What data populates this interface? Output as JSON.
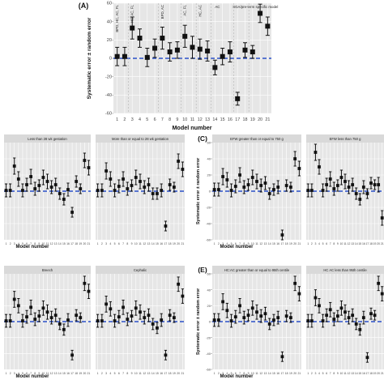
{
  "chart_data": [
    {
      "type": "scatter",
      "panel_label": "(A)",
      "ylabel": "Systematic error ± random error",
      "xlabel": "Model number",
      "ylim": [
        -60,
        60
      ],
      "yticks": [
        -60,
        -40,
        -20,
        0,
        20,
        40,
        60
      ],
      "x": [
        1,
        2,
        3,
        4,
        5,
        6,
        7,
        8,
        9,
        10,
        11,
        12,
        13,
        14,
        15,
        16,
        17,
        18,
        19,
        20,
        21
      ],
      "x_labels": [
        "1",
        "2",
        "3",
        "4",
        "5",
        "6",
        "7",
        "8",
        "9",
        "10",
        "11",
        "12",
        "13",
        "14",
        "15",
        "16",
        "17",
        "18",
        "19",
        "20",
        "21"
      ],
      "y": [
        2,
        2,
        33,
        22,
        1,
        11,
        22,
        7,
        9,
        24,
        12,
        10,
        8,
        -10,
        2,
        7,
        -44,
        9,
        7,
        49,
        35
      ],
      "error": [
        10,
        10,
        12,
        10,
        10,
        10,
        12,
        10,
        9,
        12,
        12,
        11,
        11,
        8,
        9,
        11,
        7,
        8,
        7,
        10,
        10
      ],
      "ref_line": 0,
      "group_labels": [
        "BPD, HC, AC, FL",
        "HC, AC, FL",
        "BPD, AC",
        "AC, FL",
        "HC, AC",
        "AC",
        "SGA/pre-term specific model"
      ],
      "grid": true
    },
    {
      "type": "scatter",
      "panel_label": "",
      "ylabel": "",
      "xlabel": "Model number",
      "facets": [
        "Less than 28 wk gestation",
        "More than or equal to 28 wk gestation"
      ],
      "x_labels": [
        "1",
        "2",
        "3",
        "4",
        "5",
        "6",
        "7",
        "8",
        "9",
        "10",
        "11",
        "12",
        "13",
        "14",
        "15",
        "16",
        "17",
        "18",
        "19",
        "20",
        "21"
      ],
      "ylim": [
        -60,
        60
      ],
      "series": [
        {
          "values": [
            1,
            1,
            31,
            15,
            1,
            8,
            18,
            3,
            7,
            17,
            12,
            5,
            8,
            -3,
            -10,
            2,
            -26,
            12,
            3,
            38,
            29
          ],
          "error": [
            8,
            8,
            10,
            9,
            8,
            8,
            9,
            8,
            7,
            9,
            9,
            8,
            8,
            7,
            7,
            8,
            6,
            7,
            6,
            9,
            9
          ]
        },
        {
          "values": [
            1,
            1,
            25,
            15,
            1,
            6,
            15,
            3,
            7,
            17,
            12,
            5,
            8,
            -3,
            -3,
            1,
            -43,
            8,
            5,
            37,
            27
          ],
          "error": [
            8,
            8,
            10,
            9,
            8,
            8,
            9,
            8,
            7,
            9,
            9,
            8,
            8,
            7,
            7,
            8,
            6,
            7,
            6,
            9,
            9
          ]
        }
      ]
    },
    {
      "type": "scatter",
      "panel_label": "(C)",
      "ylabel": "Systematic error ± random error",
      "xlabel": "Model number",
      "facets": [
        "EFW greater than or equal to 750 g",
        "EFW less than 750 g"
      ],
      "ylim": [
        -60,
        60
      ],
      "yticks": [
        -60,
        -40,
        -20,
        0,
        20,
        40,
        60
      ],
      "x_labels": [
        "1",
        "2",
        "3",
        "4",
        "5",
        "6",
        "7",
        "8",
        "9",
        "10",
        "11",
        "12",
        "13",
        "14",
        "15",
        "16",
        "17",
        "18",
        "19",
        "20",
        "21"
      ],
      "series": [
        {
          "values": [
            2,
            2,
            18,
            14,
            1,
            6,
            20,
            5,
            8,
            17,
            12,
            7,
            10,
            -3,
            2,
            5,
            -54,
            7,
            5,
            40,
            28
          ],
          "error": [
            8,
            8,
            10,
            9,
            8,
            8,
            9,
            8,
            7,
            9,
            9,
            8,
            8,
            7,
            7,
            8,
            6,
            7,
            6,
            9,
            9
          ]
        },
        {
          "values": [
            1,
            1,
            48,
            30,
            1,
            8,
            15,
            3,
            7,
            17,
            12,
            5,
            8,
            -3,
            -10,
            5,
            -3,
            10,
            8,
            8,
            -33
          ],
          "error": [
            8,
            8,
            10,
            9,
            8,
            8,
            9,
            8,
            7,
            9,
            9,
            8,
            8,
            7,
            7,
            8,
            6,
            7,
            6,
            9,
            9
          ]
        }
      ]
    },
    {
      "type": "scatter",
      "panel_label": "",
      "ylabel": "",
      "xlabel": "Model number",
      "facets": [
        "Breech",
        "Cephalic"
      ],
      "ylim": [
        -60,
        60
      ],
      "x_labels": [
        "1",
        "2",
        "3",
        "4",
        "5",
        "6",
        "7",
        "8",
        "9",
        "10",
        "11",
        "12",
        "13",
        "14",
        "15",
        "16",
        "17",
        "18",
        "19",
        "20",
        "21"
      ],
      "series": [
        {
          "values": [
            1,
            1,
            28,
            20,
            1,
            6,
            18,
            3,
            7,
            17,
            12,
            5,
            8,
            -3,
            -10,
            2,
            -42,
            8,
            5,
            48,
            38
          ],
          "error": [
            8,
            8,
            10,
            9,
            8,
            8,
            9,
            8,
            7,
            9,
            9,
            8,
            8,
            7,
            7,
            8,
            6,
            7,
            6,
            9,
            9
          ]
        },
        {
          "values": [
            1,
            1,
            22,
            16,
            1,
            6,
            18,
            3,
            7,
            17,
            12,
            5,
            8,
            -3,
            -8,
            2,
            -42,
            8,
            5,
            47,
            32
          ],
          "error": [
            8,
            8,
            10,
            9,
            8,
            8,
            9,
            8,
            7,
            9,
            9,
            8,
            8,
            7,
            7,
            8,
            6,
            7,
            6,
            9,
            9
          ]
        }
      ]
    },
    {
      "type": "scatter",
      "panel_label": "(E)",
      "ylabel": "Systematic error ± random error",
      "xlabel": "Model number",
      "facets": [
        "HC:AC greater than or equal to 95th centile",
        "HC AC less than 95th centile"
      ],
      "ylim": [
        -60,
        60
      ],
      "yticks": [
        -60,
        -40,
        -20,
        0,
        20,
        40,
        60
      ],
      "x_labels": [
        "1",
        "2",
        "3",
        "4",
        "5",
        "6",
        "7",
        "8",
        "9",
        "10",
        "11",
        "12",
        "13",
        "14",
        "15",
        "16",
        "17",
        "18",
        "19",
        "20",
        "21"
      ],
      "series": [
        {
          "values": [
            2,
            2,
            25,
            14,
            1,
            6,
            20,
            5,
            8,
            17,
            12,
            7,
            10,
            -3,
            2,
            5,
            -44,
            7,
            5,
            48,
            35
          ],
          "error": [
            8,
            8,
            10,
            9,
            8,
            8,
            9,
            8,
            7,
            9,
            9,
            8,
            8,
            7,
            7,
            8,
            6,
            7,
            6,
            9,
            9
          ]
        },
        {
          "values": [
            1,
            1,
            30,
            20,
            1,
            8,
            15,
            3,
            7,
            17,
            12,
            5,
            8,
            -3,
            -10,
            5,
            -45,
            10,
            8,
            48,
            35
          ],
          "error": [
            8,
            8,
            10,
            9,
            8,
            8,
            9,
            8,
            7,
            9,
            9,
            8,
            8,
            7,
            7,
            8,
            6,
            7,
            6,
            9,
            9
          ]
        }
      ]
    }
  ],
  "colors": {
    "panel_bg": "#e6e6e6",
    "strip_bg": "#d9d9d9",
    "ref_line": "#2b50c8",
    "marker": "#111111"
  }
}
